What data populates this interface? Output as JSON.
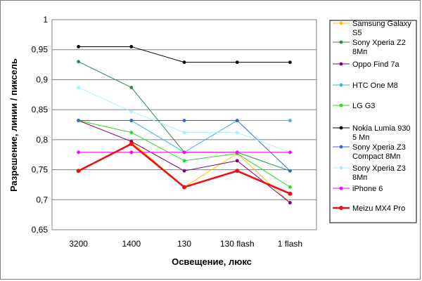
{
  "chart_data": {
    "type": "line",
    "title": "",
    "xlabel": "Освещение, люкс",
    "ylabel": "Разрешение, линии / пиксель",
    "categories": [
      "3200",
      "1400",
      "130",
      "130 flash",
      "1 flash"
    ],
    "ylim": [
      0.65,
      1
    ],
    "yticks": [
      0.65,
      0.7,
      0.75,
      0.8,
      0.85,
      0.9,
      0.95,
      1
    ],
    "ytick_labels": [
      "0,65",
      "0,7",
      "0,75",
      "0,8",
      "0,85",
      "0,9",
      "0,95",
      "1"
    ],
    "grid": "horizontal",
    "legend_position": "right",
    "series": [
      {
        "name": "Samsung Galaxy S5",
        "legend_lines": [
          "Samsung Galaxy",
          "S5"
        ],
        "color": "#ffc000",
        "values": [
          0.832,
          0.797,
          0.721,
          0.777,
          0.695
        ]
      },
      {
        "name": "Sony Xperia Z2 8Мп",
        "legend_lines": [
          "Sony Xperia Z2",
          "8Мп"
        ],
        "color": "#2e8b57",
        "values": [
          0.93,
          0.887,
          0.779,
          0.779,
          0.748
        ]
      },
      {
        "name": "Oppo Find 7a",
        "legend_lines": [
          "Oppo Find 7a"
        ],
        "color": "#800080",
        "values": [
          0.832,
          0.797,
          0.748,
          0.765,
          0.695
        ]
      },
      {
        "name": "HTC One M8",
        "legend_lines": [
          "HTC One M8"
        ],
        "color": "#3cb4e6",
        "values": [
          0.832,
          0.832,
          0.779,
          0.832,
          0.832
        ]
      },
      {
        "name": "LG G3",
        "legend_lines": [
          "LG G3"
        ],
        "color": "#22dd22",
        "values": [
          0.832,
          0.812,
          0.765,
          0.777,
          0.721
        ]
      },
      {
        "name": "Nokia Lumia 930 5 Мп",
        "legend_lines": [
          "Nokia Lumia 930",
          "5 Мп"
        ],
        "color": "#000000",
        "values": [
          0.955,
          0.955,
          0.929,
          0.929,
          0.929
        ]
      },
      {
        "name": "Sony Xperia Z3 Compact 8Мп",
        "legend_lines": [
          "Sony Xperia Z3",
          "Compact 8Мп"
        ],
        "color": "#3366dd",
        "values": [
          0.832,
          0.832,
          0.832,
          0.832,
          0.748
        ]
      },
      {
        "name": "Sony Xperia Z3 8Мп",
        "legend_lines": [
          "Sony Xperia Z3",
          "8Мп"
        ],
        "color": "#a8f0ff",
        "values": [
          0.887,
          0.847,
          0.812,
          0.812,
          0.779
        ]
      },
      {
        "name": "iPhone 6",
        "legend_lines": [
          "iPhone 6"
        ],
        "color": "#ff00ff",
        "values": [
          0.779,
          0.779,
          0.779,
          0.779,
          0.779
        ]
      },
      {
        "name": "Meizu MX4 Pro",
        "legend_lines": [
          "Meizu MX4 Pro"
        ],
        "color": "#ee1111",
        "values": [
          0.748,
          0.793,
          0.721,
          0.748,
          0.71
        ]
      }
    ]
  }
}
